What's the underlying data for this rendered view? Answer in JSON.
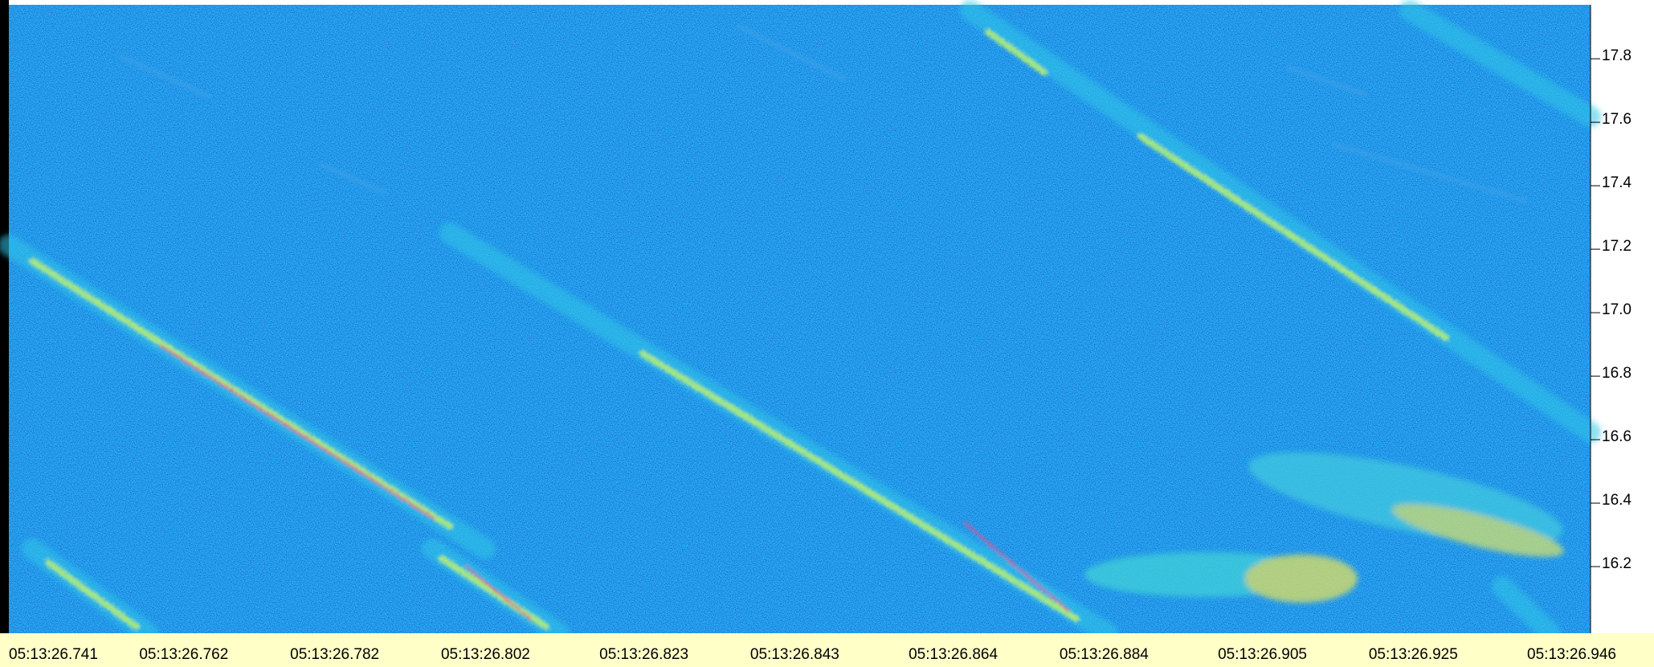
{
  "chart_data": {
    "type": "spectrogram",
    "xlim": [
      26.7388,
      26.9485
    ],
    "xticks": [
      {
        "value": 26.741,
        "label": "05:13:26.741"
      },
      {
        "value": 26.762,
        "label": "05:13:26.762"
      },
      {
        "value": 26.782,
        "label": "05:13:26.782"
      },
      {
        "value": 26.802,
        "label": "05:13:26.802"
      },
      {
        "value": 26.823,
        "label": "05:13:26.823"
      },
      {
        "value": 26.843,
        "label": "05:13:26.843"
      },
      {
        "value": 26.864,
        "label": "05:13:26.864"
      },
      {
        "value": 26.884,
        "label": "05:13:26.884"
      },
      {
        "value": 26.905,
        "label": "05:13:26.905"
      },
      {
        "value": 26.925,
        "label": "05:13:26.925"
      },
      {
        "value": 26.946,
        "label": "05:13:26.946"
      }
    ],
    "ylim": [
      15.99,
      17.97
    ],
    "yticks": [
      {
        "value": 17.8,
        "label": "17.8"
      },
      {
        "value": 17.6,
        "label": "17.6"
      },
      {
        "value": 17.4,
        "label": "17.4"
      },
      {
        "value": 17.2,
        "label": "17.2"
      },
      {
        "value": 17.0,
        "label": "17.0"
      },
      {
        "value": 16.8,
        "label": "16.8"
      },
      {
        "value": 16.6,
        "label": "16.6"
      },
      {
        "value": 16.4,
        "label": "16.4"
      },
      {
        "value": 16.2,
        "label": "16.2"
      }
    ]
  }
}
